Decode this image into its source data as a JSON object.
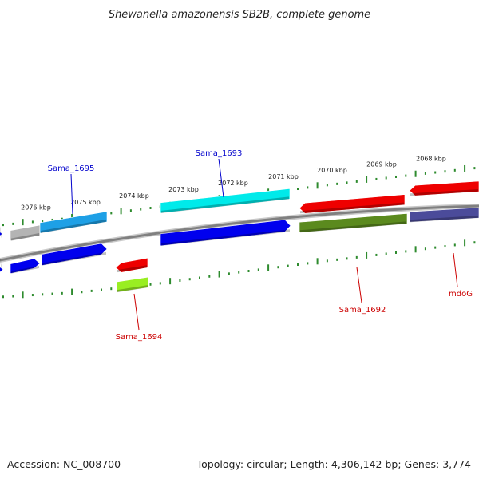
{
  "title": "Shewanella amazonensis SB2B, complete genome",
  "footer": {
    "accession": "Accession: NC_008700",
    "summary": "Topology: circular; Length: 4,306,142 bp; Genes: 3,774"
  },
  "ticks": [
    {
      "label": "2076 kbp"
    },
    {
      "label": "2075 kbp"
    },
    {
      "label": "2074 kbp"
    },
    {
      "label": "2073 kbp"
    },
    {
      "label": "2072 kbp"
    },
    {
      "label": "2071 kbp"
    },
    {
      "label": "2070 kbp"
    },
    {
      "label": "2069 kbp"
    },
    {
      "label": "2068 kbp"
    }
  ],
  "gene_labels": [
    {
      "text": "Sama_1695",
      "color": "#0000cc",
      "strand": "forward"
    },
    {
      "text": "Sama_1693",
      "color": "#0000cc",
      "strand": "forward"
    },
    {
      "text": "Sama_1694",
      "color": "#cc0000",
      "strand": "reverse"
    },
    {
      "text": "Sama_1692",
      "color": "#cc0000",
      "strand": "reverse"
    },
    {
      "text": "mdoG",
      "color": "#cc0000",
      "strand": "reverse"
    }
  ],
  "colors": {
    "backbone": "#808080",
    "tick": "#2e8b2e",
    "blue": "#0000ee",
    "cyan": "#00eaea",
    "sky": "#1ea0e6",
    "gray": "#b4b4b4",
    "red": "#ee0000",
    "olive": "#5b8a1e",
    "lime": "#99ee22",
    "slate": "#4b4b9a"
  }
}
